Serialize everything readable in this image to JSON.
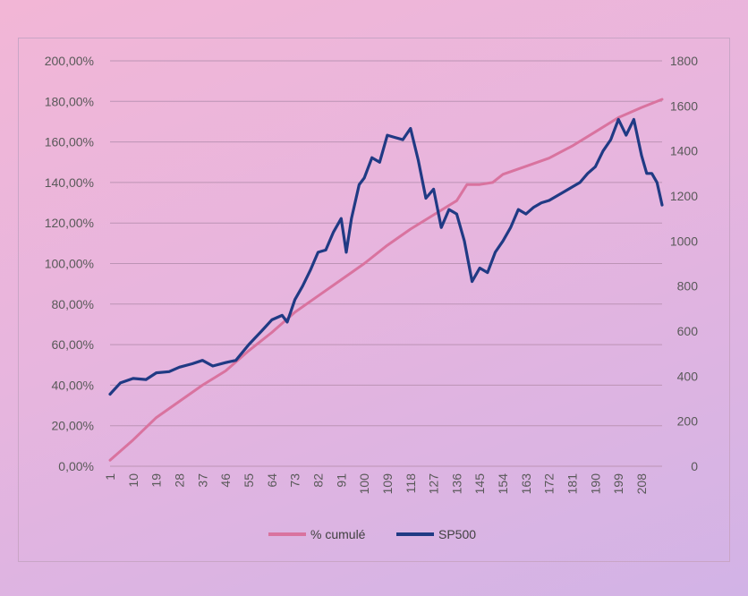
{
  "chart_data": {
    "type": "line",
    "x_range": [
      1,
      216
    ],
    "x_tick_labels": [
      "1",
      "10",
      "19",
      "28",
      "37",
      "46",
      "55",
      "64",
      "73",
      "82",
      "91",
      "100",
      "109",
      "118",
      "127",
      "136",
      "145",
      "154",
      "163",
      "172",
      "181",
      "190",
      "199",
      "208"
    ],
    "y_left": {
      "range": [
        0,
        200
      ],
      "ticks": [
        "200,00%",
        "180,00%",
        "160,00%",
        "140,00%",
        "120,00%",
        "100,00%",
        "80,00%",
        "60,00%",
        "40,00%",
        "20,00%",
        "0,00%"
      ],
      "tick_values": [
        200,
        180,
        160,
        140,
        120,
        100,
        80,
        60,
        40,
        20,
        0
      ]
    },
    "y_right": {
      "range": [
        0,
        1800
      ],
      "ticks": [
        "1800",
        "1600",
        "1400",
        "1200",
        "1000",
        "800",
        "600",
        "400",
        "200",
        "0"
      ],
      "tick_values": [
        1800,
        1600,
        1400,
        1200,
        1000,
        800,
        600,
        400,
        200,
        0
      ]
    },
    "grid": true,
    "legend_position": "bottom",
    "series": [
      {
        "name": "% cumulé",
        "axis": "left",
        "color": "#d9739f",
        "points": [
          [
            1,
            3
          ],
          [
            10,
            13
          ],
          [
            19,
            24
          ],
          [
            28,
            32
          ],
          [
            37,
            40
          ],
          [
            46,
            47
          ],
          [
            55,
            57
          ],
          [
            64,
            66
          ],
          [
            73,
            76
          ],
          [
            82,
            84
          ],
          [
            91,
            92
          ],
          [
            100,
            100
          ],
          [
            109,
            109
          ],
          [
            118,
            117
          ],
          [
            127,
            124
          ],
          [
            136,
            131
          ],
          [
            140,
            139
          ],
          [
            145,
            139
          ],
          [
            150,
            140
          ],
          [
            154,
            144
          ],
          [
            163,
            148
          ],
          [
            172,
            152
          ],
          [
            181,
            158
          ],
          [
            190,
            165
          ],
          [
            199,
            172
          ],
          [
            208,
            177
          ],
          [
            216,
            181
          ]
        ]
      },
      {
        "name": "SP500",
        "axis": "right",
        "color": "#203a84",
        "points": [
          [
            1,
            320
          ],
          [
            5,
            370
          ],
          [
            10,
            390
          ],
          [
            15,
            385
          ],
          [
            19,
            415
          ],
          [
            24,
            420
          ],
          [
            28,
            440
          ],
          [
            33,
            455
          ],
          [
            37,
            470
          ],
          [
            41,
            445
          ],
          [
            46,
            460
          ],
          [
            50,
            470
          ],
          [
            55,
            540
          ],
          [
            60,
            600
          ],
          [
            64,
            650
          ],
          [
            68,
            670
          ],
          [
            70,
            640
          ],
          [
            73,
            740
          ],
          [
            76,
            800
          ],
          [
            79,
            870
          ],
          [
            82,
            950
          ],
          [
            85,
            960
          ],
          [
            88,
            1040
          ],
          [
            91,
            1100
          ],
          [
            93,
            950
          ],
          [
            95,
            1100
          ],
          [
            98,
            1250
          ],
          [
            100,
            1280
          ],
          [
            103,
            1370
          ],
          [
            106,
            1350
          ],
          [
            109,
            1470
          ],
          [
            112,
            1460
          ],
          [
            115,
            1450
          ],
          [
            118,
            1500
          ],
          [
            121,
            1360
          ],
          [
            124,
            1190
          ],
          [
            127,
            1230
          ],
          [
            130,
            1060
          ],
          [
            133,
            1140
          ],
          [
            136,
            1120
          ],
          [
            139,
            1000
          ],
          [
            142,
            820
          ],
          [
            145,
            880
          ],
          [
            148,
            860
          ],
          [
            151,
            950
          ],
          [
            154,
            1000
          ],
          [
            157,
            1060
          ],
          [
            160,
            1140
          ],
          [
            163,
            1120
          ],
          [
            166,
            1150
          ],
          [
            169,
            1170
          ],
          [
            172,
            1180
          ],
          [
            175,
            1200
          ],
          [
            178,
            1220
          ],
          [
            181,
            1240
          ],
          [
            184,
            1260
          ],
          [
            187,
            1300
          ],
          [
            190,
            1330
          ],
          [
            193,
            1400
          ],
          [
            196,
            1450
          ],
          [
            199,
            1540
          ],
          [
            202,
            1470
          ],
          [
            205,
            1540
          ],
          [
            208,
            1380
          ],
          [
            210,
            1300
          ],
          [
            212,
            1300
          ],
          [
            214,
            1260
          ],
          [
            216,
            1160
          ]
        ]
      }
    ]
  }
}
